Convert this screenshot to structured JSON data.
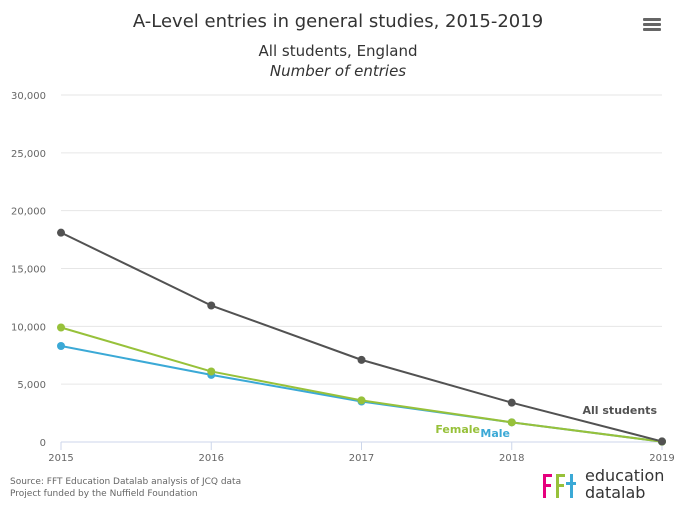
{
  "chart_data": {
    "type": "line",
    "title": "A-Level entries in general studies, 2015-2019",
    "subtitle_line1": "All students, England",
    "subtitle_line2": "Number of entries",
    "x": [
      "2015",
      "2016",
      "2017",
      "2018",
      "2019"
    ],
    "yticks": [
      "0",
      "5,000",
      "10,000",
      "15,000",
      "20,000",
      "25,000",
      "30,000"
    ],
    "ylim": [
      0,
      30000
    ],
    "grid": true,
    "series": [
      {
        "name": "All students",
        "values": [
          18100,
          11800,
          7100,
          3400,
          50
        ],
        "color": "#525252"
      },
      {
        "name": "Female",
        "values": [
          9900,
          6100,
          3600,
          1700,
          30
        ],
        "color": "#97c13a"
      },
      {
        "name": "Male",
        "values": [
          8300,
          5800,
          3500,
          1700,
          30
        ],
        "color": "#3ba9d6"
      }
    ]
  },
  "source_line1": "Source: FFT Education Datalab analysis of JCQ data",
  "source_line2": "Project funded by the Nuffield Foundation",
  "logo": {
    "word1": "education",
    "word2": "datalab",
    "mark_text": "fft",
    "mark_colors": [
      "#e6007e",
      "#97c13a",
      "#3ba9d6"
    ]
  },
  "menu_icon": "hamburger-menu-icon"
}
